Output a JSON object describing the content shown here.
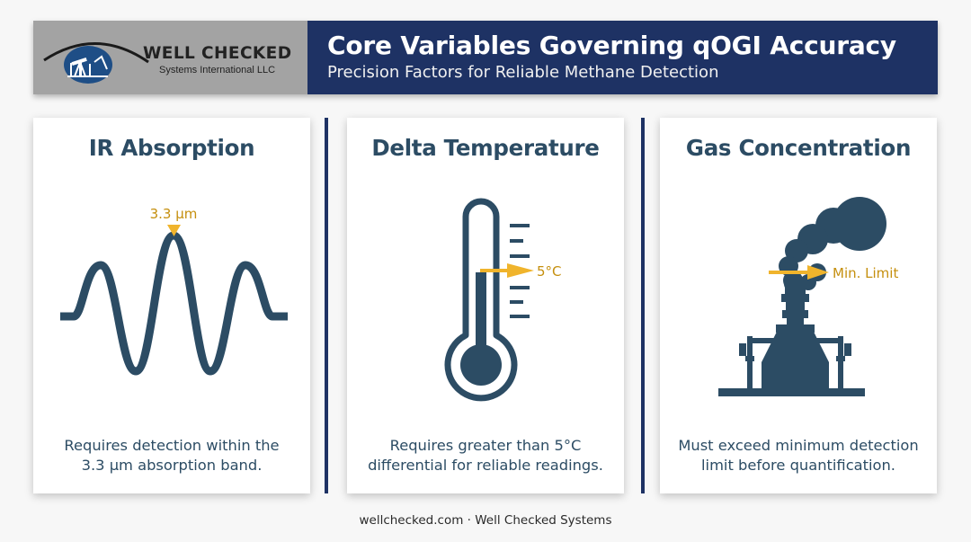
{
  "header": {
    "logo": {
      "name": "WELL CHECKED",
      "subtitle": "Systems International LLC"
    },
    "title": "Core Variables Governing qOGI Accuracy",
    "subtitle": "Precision Factors for Reliable Methane Detection"
  },
  "colors": {
    "navy": "#1e3264",
    "slate": "#2c4c64",
    "accent": "#f0b42c",
    "logo_bg": "#a3a3a3"
  },
  "cards": [
    {
      "title": "IR Absorption",
      "icon": "wave-icon",
      "marker_label": "3.3 µm",
      "desc_line1": "Requires detection within the",
      "desc_line2": "3.3 µm absorption band."
    },
    {
      "title": "Delta Temperature",
      "icon": "thermometer-icon",
      "marker_label": "5°C",
      "desc_line1": "Requires greater than 5°C",
      "desc_line2": "differential for reliable readings."
    },
    {
      "title": "Gas Concentration",
      "icon": "gas-stack-icon",
      "marker_label": "Min. Limit",
      "desc_line1": "Must exceed minimum detection",
      "desc_line2": "limit before quantification."
    }
  ],
  "footer": "wellchecked.com · Well Checked Systems"
}
